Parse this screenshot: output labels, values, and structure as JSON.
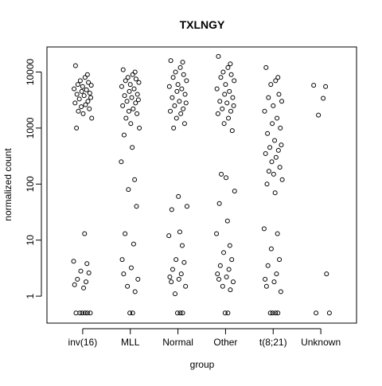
{
  "chart_data": {
    "type": "scatter",
    "title": "TXLNGY",
    "x_label": "group",
    "y_label": "normalized count",
    "log_y": true,
    "xlim": [
      0.25,
      6.75
    ],
    "ylim": [
      0.33,
      28000
    ],
    "xticks": [
      {
        "value": 1,
        "label": "inv(16)"
      },
      {
        "value": 2,
        "label": "MLL"
      },
      {
        "value": 3,
        "label": "Normal"
      },
      {
        "value": 4,
        "label": "Other"
      },
      {
        "value": 5,
        "label": "t(8;21)"
      },
      {
        "value": 6,
        "label": "Unknown"
      }
    ],
    "yticks": [
      1,
      10,
      100,
      1000,
      10000
    ],
    "color": "#000000",
    "groups": [
      {
        "x": [
          0.85,
          1.1,
          1.05,
          0.95,
          1.12,
          0.9,
          1.18,
          1.0,
          0.82,
          1.08,
          0.98,
          1.15,
          0.88,
          1.03,
          1.17,
          0.93,
          1.11,
          0.84,
          1.06,
          0.97,
          1.14,
          0.91,
          1.01,
          1.19,
          0.87,
          1.04,
          0.81,
          1.09,
          0.96,
          1.13,
          0.89,
          1.07,
          0.83,
          1.02,
          0.86,
          1.16,
          0.94,
          1.1,
          0.99,
          1.05
        ],
        "y": [
          13000,
          9000,
          8000,
          7000,
          6500,
          6000,
          5800,
          5500,
          5000,
          4800,
          4500,
          4200,
          4000,
          3800,
          3500,
          3300,
          3000,
          2800,
          2600,
          2400,
          2200,
          2000,
          1800,
          1500,
          1000,
          13,
          4.2,
          3.8,
          2.8,
          2.6,
          2.0,
          1.8,
          1.6,
          1.4,
          0.5,
          0.5,
          0.5,
          0.5,
          0.5,
          0.5
        ]
      },
      {
        "x": [
          1.85,
          2.1,
          2.05,
          1.95,
          2.12,
          1.9,
          2.18,
          2.0,
          1.82,
          2.08,
          1.98,
          2.15,
          1.88,
          2.03,
          2.17,
          1.93,
          2.11,
          1.84,
          2.06,
          1.97,
          2.14,
          1.91,
          2.01,
          2.19,
          1.87,
          2.04,
          1.81,
          2.09,
          1.96,
          2.13,
          1.89,
          2.07,
          1.83,
          2.02,
          1.86,
          2.16,
          1.94,
          2.1,
          1.99,
          2.05
        ],
        "y": [
          11000,
          10000,
          9000,
          8000,
          7500,
          7000,
          6500,
          6000,
          5500,
          5000,
          4500,
          4000,
          3800,
          3500,
          3200,
          3000,
          2800,
          2500,
          2200,
          2000,
          1800,
          1500,
          1200,
          1000,
          750,
          450,
          250,
          120,
          80,
          40,
          13,
          8.5,
          4.5,
          3.2,
          2.5,
          2.0,
          1.5,
          1.2,
          0.5,
          0.5
        ]
      },
      {
        "x": [
          2.85,
          3.1,
          3.05,
          2.95,
          3.12,
          2.9,
          3.18,
          3.0,
          2.82,
          3.08,
          2.98,
          3.15,
          2.88,
          3.03,
          3.17,
          2.93,
          3.11,
          2.84,
          3.06,
          2.97,
          3.14,
          2.91,
          3.01,
          3.19,
          2.87,
          3.04,
          2.81,
          3.09,
          2.96,
          3.13,
          2.89,
          3.07,
          2.83,
          3.02,
          2.86,
          3.16,
          2.94,
          3.1,
          2.99,
          3.05
        ],
        "y": [
          16000,
          15000,
          12000,
          10000,
          9000,
          8000,
          7000,
          6000,
          5500,
          5000,
          4500,
          4000,
          3500,
          3000,
          2800,
          2500,
          2200,
          2000,
          1800,
          1500,
          1200,
          1000,
          60,
          40,
          35,
          14,
          12,
          8,
          4.5,
          4,
          3,
          2.5,
          2.2,
          2,
          1.8,
          1.5,
          1.1,
          0.5,
          0.5,
          0.5
        ]
      },
      {
        "x": [
          3.85,
          4.1,
          4.05,
          3.95,
          4.12,
          3.9,
          4.18,
          4.0,
          3.82,
          4.08,
          3.98,
          4.15,
          3.88,
          4.03,
          4.17,
          3.93,
          4.11,
          3.84,
          4.06,
          3.97,
          4.14,
          3.91,
          4.01,
          4.19,
          3.87,
          4.04,
          3.81,
          4.09,
          3.96,
          4.13,
          3.89,
          4.07,
          3.83,
          4.02,
          3.86,
          4.16,
          3.94,
          4.1,
          3.99,
          4.05
        ],
        "y": [
          19000,
          14000,
          12000,
          10000,
          9000,
          8000,
          7000,
          6000,
          5000,
          4500,
          4000,
          3500,
          3000,
          2800,
          2500,
          2200,
          2000,
          1800,
          1500,
          1200,
          900,
          150,
          130,
          75,
          45,
          22,
          13,
          8,
          6,
          4.5,
          3.5,
          3,
          2.5,
          2.2,
          2,
          1.8,
          1.5,
          1.3,
          0.5,
          0.5
        ]
      },
      {
        "x": [
          4.85,
          5.1,
          5.05,
          4.95,
          5.12,
          4.9,
          5.18,
          5.0,
          4.82,
          5.08,
          4.98,
          5.15,
          4.88,
          5.03,
          5.17,
          4.93,
          5.11,
          4.84,
          5.06,
          4.97,
          5.14,
          4.91,
          5.01,
          5.19,
          4.87,
          5.04,
          4.81,
          5.09,
          4.96,
          5.13,
          4.89,
          5.07,
          4.83,
          5.02,
          4.86,
          5.16,
          4.94,
          5.1,
          4.99,
          5.05
        ],
        "y": [
          12000,
          8000,
          7000,
          6000,
          4000,
          3500,
          3000,
          2500,
          2000,
          1500,
          1200,
          1000,
          800,
          600,
          500,
          450,
          400,
          350,
          300,
          250,
          200,
          170,
          150,
          120,
          100,
          70,
          16,
          13,
          7,
          4.5,
          3.5,
          2.5,
          2,
          1.8,
          1.5,
          1.2,
          0.5,
          0.5,
          0.5,
          0.5
        ]
      },
      {
        "x": [
          5.85,
          6.1,
          6.05,
          5.95,
          6.12,
          5.9,
          6.18
        ],
        "y": [
          5800,
          5500,
          3400,
          1700,
          2.5,
          0.5,
          0.5
        ]
      }
    ]
  }
}
